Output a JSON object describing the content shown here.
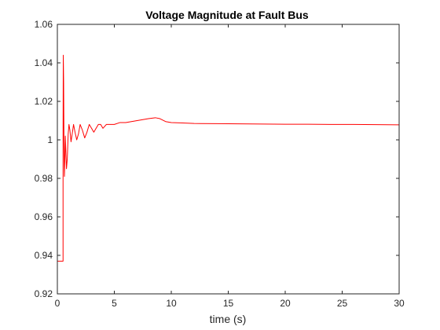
{
  "chart_data": {
    "type": "line",
    "title": "Voltage Magnitude at Fault Bus",
    "xlabel": "time (s)",
    "ylabel": "",
    "xlim": [
      0,
      30
    ],
    "ylim": [
      0.92,
      1.06
    ],
    "x_ticks": [
      "0",
      "5",
      "10",
      "15",
      "20",
      "25",
      "30"
    ],
    "x_tick_values": [
      0,
      5,
      10,
      15,
      20,
      25,
      30
    ],
    "y_ticks": [
      "0.92",
      "0.94",
      "0.96",
      "0.98",
      "1",
      "1.02",
      "1.04",
      "1.06"
    ],
    "y_tick_values": [
      0.92,
      0.94,
      0.96,
      0.98,
      1.0,
      1.02,
      1.04,
      1.06
    ],
    "grid": false,
    "series": [
      {
        "color": "#ff0000",
        "x": [
          0,
          0.5,
          0.5,
          0.52,
          0.55,
          0.58,
          0.62,
          0.66,
          0.7,
          0.75,
          0.8,
          0.87,
          0.95,
          1.02,
          1.1,
          1.2,
          1.3,
          1.42,
          1.55,
          1.7,
          1.85,
          2.0,
          2.2,
          2.4,
          2.6,
          2.8,
          3.0,
          3.2,
          3.4,
          3.6,
          3.8,
          4.0,
          4.3,
          4.6,
          5.0,
          5.5,
          6.0,
          7.0,
          8.0,
          8.6,
          9.0,
          9.5,
          10.0,
          11.0,
          12.0,
          14.0,
          16.0,
          18.0,
          20.0,
          22.0,
          24.0,
          26.0,
          28.0,
          30.0
        ],
        "y": [
          0.937,
          0.937,
          0.999,
          1.044,
          1.03,
          0.999,
          0.981,
          0.99,
          1.002,
          0.993,
          0.985,
          0.99,
          1.003,
          1.008,
          1.005,
          0.999,
          1.003,
          1.008,
          1.004,
          1.0,
          1.003,
          1.008,
          1.005,
          1.001,
          1.004,
          1.008,
          1.006,
          1.004,
          1.006,
          1.008,
          1.008,
          1.006,
          1.008,
          1.008,
          1.008,
          1.009,
          1.009,
          1.01,
          1.011,
          1.0115,
          1.011,
          1.0095,
          1.009,
          1.0088,
          1.0085,
          1.0084,
          1.0083,
          1.0082,
          1.0081,
          1.0081,
          1.008,
          1.008,
          1.0079,
          1.0078
        ]
      }
    ]
  }
}
